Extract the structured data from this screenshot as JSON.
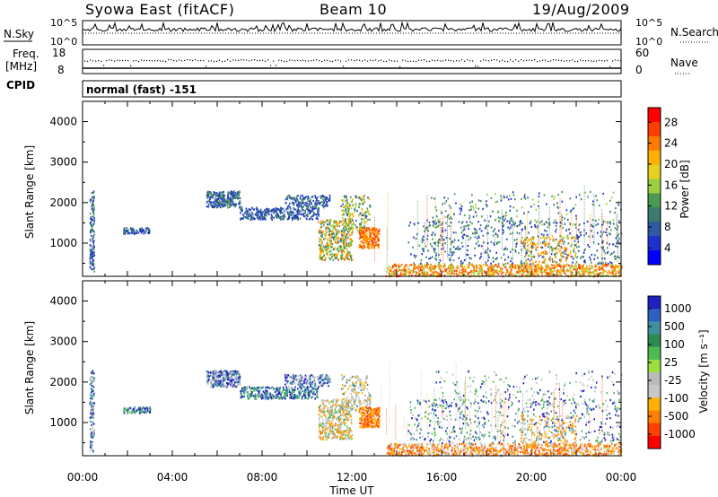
{
  "header": {
    "station": "Syowa East (fitACF)",
    "beam": "Beam 10",
    "date": "19/Aug/2009"
  },
  "top_panels": {
    "nsky_label": "N.Sky",
    "nsky_ticks": [
      "10^5",
      "10^0"
    ],
    "nsearch_label": "N.Search",
    "nsearch_ticks": [
      "10^5",
      "10^0"
    ],
    "freq_label": "Freq.",
    "freq_unit": "[MHz]",
    "freq_ticks": [
      "18",
      "8"
    ],
    "nave_label": "Nave",
    "nave_ticks": [
      "60",
      "0"
    ],
    "cpid_label": "CPID",
    "cpid_value": "normal (fast) -151"
  },
  "chart_data": [
    {
      "type": "heatmap",
      "quantity": "Power",
      "ylabel": "Slant Range [km]",
      "yticks": [
        "4000",
        "3000",
        "2000",
        "1000"
      ],
      "ylim": [
        180,
        4500
      ],
      "xlim_hours": [
        0,
        24
      ],
      "colorbar": {
        "label": "Power [dB]",
        "ticks": [
          "28",
          "24",
          "20",
          "16",
          "12",
          "8",
          "4"
        ],
        "colors": [
          "#ff0000",
          "#ff3c00",
          "#ff7a00",
          "#ffb000",
          "#e8d020",
          "#9ad040",
          "#4a9a50",
          "#3a7a70",
          "#2d5aa0",
          "#1f30d0",
          "#0000ff"
        ]
      }
    },
    {
      "type": "heatmap",
      "quantity": "Velocity",
      "ylabel": "Slant Range [km]",
      "yticks": [
        "4000",
        "3000",
        "2000",
        "1000"
      ],
      "ylim": [
        180,
        4500
      ],
      "xlim_hours": [
        0,
        24
      ],
      "colorbar": {
        "label": "Velocity [m s⁻¹]",
        "ticks": [
          "1000",
          "500",
          "100",
          "25",
          "-25",
          "-100",
          "-500",
          "-1000"
        ],
        "colors": [
          "#2020c0",
          "#2f60c0",
          "#3f8fa0",
          "#2e8a50",
          "#4cba50",
          "#9ae040",
          "#bbbbbb",
          "#c8c8c8",
          "#ffb000",
          "#ff8000",
          "#ff4000",
          "#ff0000"
        ]
      }
    }
  ],
  "xaxis": {
    "label": "Time UT",
    "ticks": [
      "00:00",
      "04:00",
      "08:00",
      "12:00",
      "16:00",
      "20:00",
      "00:00"
    ]
  }
}
